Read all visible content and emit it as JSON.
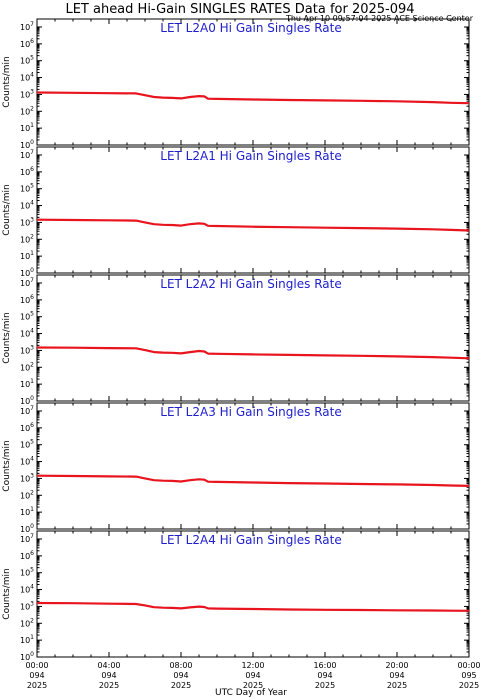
{
  "figure": {
    "title": "LET ahead Hi-Gain SINGLES RATES Data for 2025-094",
    "timestamp": "Thu Apr 10 09:57:04 2025 ACE Science Center",
    "xlabel": "UTC Day of Year",
    "ylabel": "Counts/min"
  },
  "colors": {
    "series": "#e8141e",
    "panel_title": "#2020cc",
    "axes": "#000000"
  },
  "chart_data": [
    {
      "type": "line",
      "title": "LET L2A0 Hi Gain Singles Rate",
      "ylabel": "Counts/min",
      "yscale": "log",
      "ylim": [
        1,
        10000000
      ],
      "xlim": [
        0,
        24
      ],
      "ytick_labels": [
        "10^0",
        "10^1",
        "10^2",
        "10^3",
        "10^4",
        "10^5",
        "10^6",
        "10^7"
      ],
      "series": [
        {
          "values": [
            [
              0,
              1300
            ],
            [
              2,
              1250
            ],
            [
              4,
              1180
            ],
            [
              5.5,
              1150
            ],
            [
              6,
              900
            ],
            [
              6.5,
              700
            ],
            [
              7,
              650
            ],
            [
              7.5,
              620
            ],
            [
              8,
              580
            ],
            [
              8.5,
              700
            ],
            [
              9,
              800
            ],
            [
              9.3,
              760
            ],
            [
              9.5,
              560
            ],
            [
              10,
              540
            ],
            [
              12,
              500
            ],
            [
              14,
              470
            ],
            [
              16,
              440
            ],
            [
              18,
              420
            ],
            [
              20,
              390
            ],
            [
              22,
              350
            ],
            [
              23,
              320
            ],
            [
              24,
              300
            ]
          ]
        }
      ]
    },
    {
      "type": "line",
      "title": "LET L2A1 Hi Gain Singles Rate",
      "ylabel": "Counts/min",
      "yscale": "log",
      "ylim": [
        1,
        10000000
      ],
      "xlim": [
        0,
        24
      ],
      "ytick_labels": [
        "10^0",
        "10^1",
        "10^2",
        "10^3",
        "10^4",
        "10^5",
        "10^6",
        "10^7"
      ],
      "series": [
        {
          "values": [
            [
              0,
              1450
            ],
            [
              2,
              1400
            ],
            [
              4,
              1330
            ],
            [
              5.5,
              1280
            ],
            [
              6,
              1000
            ],
            [
              6.5,
              780
            ],
            [
              7,
              720
            ],
            [
              7.5,
              700
            ],
            [
              8,
              650
            ],
            [
              8.5,
              780
            ],
            [
              9,
              880
            ],
            [
              9.3,
              830
            ],
            [
              9.5,
              630
            ],
            [
              10,
              610
            ],
            [
              12,
              560
            ],
            [
              14,
              520
            ],
            [
              16,
              490
            ],
            [
              18,
              460
            ],
            [
              20,
              430
            ],
            [
              22,
              390
            ],
            [
              23,
              360
            ],
            [
              24,
              330
            ]
          ]
        }
      ]
    },
    {
      "type": "line",
      "title": "LET L2A2 Hi Gain Singles Rate",
      "ylabel": "Counts/min",
      "yscale": "log",
      "ylim": [
        1,
        10000000
      ],
      "xlim": [
        0,
        24
      ],
      "ytick_labels": [
        "10^0",
        "10^1",
        "10^2",
        "10^3",
        "10^4",
        "10^5",
        "10^6",
        "10^7"
      ],
      "series": [
        {
          "values": [
            [
              0,
              1500
            ],
            [
              2,
              1450
            ],
            [
              4,
              1380
            ],
            [
              5.5,
              1330
            ],
            [
              6,
              1050
            ],
            [
              6.5,
              800
            ],
            [
              7,
              740
            ],
            [
              7.5,
              720
            ],
            [
              8,
              670
            ],
            [
              8.5,
              800
            ],
            [
              9,
              920
            ],
            [
              9.3,
              860
            ],
            [
              9.5,
              650
            ],
            [
              10,
              630
            ],
            [
              12,
              580
            ],
            [
              14,
              540
            ],
            [
              16,
              510
            ],
            [
              18,
              480
            ],
            [
              20,
              440
            ],
            [
              22,
              400
            ],
            [
              23,
              370
            ],
            [
              24,
              340
            ]
          ]
        }
      ]
    },
    {
      "type": "line",
      "title": "LET L2A3 Hi Gain Singles Rate",
      "ylabel": "Counts/min",
      "yscale": "log",
      "ylim": [
        1,
        10000000
      ],
      "xlim": [
        0,
        24
      ],
      "ytick_labels": [
        "10^0",
        "10^1",
        "10^2",
        "10^3",
        "10^4",
        "10^5",
        "10^6",
        "10^7"
      ],
      "series": [
        {
          "values": [
            [
              0,
              1450
            ],
            [
              2,
              1400
            ],
            [
              4,
              1320
            ],
            [
              5.5,
              1280
            ],
            [
              6,
              1000
            ],
            [
              6.5,
              790
            ],
            [
              7,
              730
            ],
            [
              7.5,
              710
            ],
            [
              8,
              660
            ],
            [
              8.5,
              790
            ],
            [
              9,
              890
            ],
            [
              9.3,
              840
            ],
            [
              9.5,
              640
            ],
            [
              10,
              620
            ],
            [
              12,
              570
            ],
            [
              14,
              530
            ],
            [
              16,
              500
            ],
            [
              18,
              470
            ],
            [
              20,
              440
            ],
            [
              22,
              410
            ],
            [
              23,
              380
            ],
            [
              24,
              360
            ]
          ]
        }
      ]
    },
    {
      "type": "line",
      "title": "LET L2A4 Hi Gain Singles Rate",
      "ylabel": "Counts/min",
      "yscale": "log",
      "ylim": [
        1,
        10000000
      ],
      "xlim": [
        0,
        24
      ],
      "ytick_labels": [
        "10^0",
        "10^1",
        "10^2",
        "10^3",
        "10^4",
        "10^5",
        "10^6",
        "10^7"
      ],
      "series": [
        {
          "values": [
            [
              0,
              1600
            ],
            [
              2,
              1550
            ],
            [
              4,
              1460
            ],
            [
              5.5,
              1400
            ],
            [
              6,
              1150
            ],
            [
              6.5,
              900
            ],
            [
              7,
              840
            ],
            [
              7.5,
              820
            ],
            [
              8,
              760
            ],
            [
              8.5,
              880
            ],
            [
              9,
              980
            ],
            [
              9.3,
              920
            ],
            [
              9.5,
              760
            ],
            [
              10,
              740
            ],
            [
              12,
              700
            ],
            [
              14,
              660
            ],
            [
              16,
              630
            ],
            [
              18,
              610
            ],
            [
              20,
              590
            ],
            [
              22,
              570
            ],
            [
              23,
              560
            ],
            [
              24,
              550
            ]
          ]
        }
      ]
    }
  ],
  "x_ticks": [
    {
      "time": "00:00",
      "day": "094",
      "year": "2025"
    },
    {
      "time": "04:00",
      "day": "094",
      "year": "2025"
    },
    {
      "time": "08:00",
      "day": "094",
      "year": "2025"
    },
    {
      "time": "12:00",
      "day": "094",
      "year": "2025"
    },
    {
      "time": "16:00",
      "day": "094",
      "year": "2025"
    },
    {
      "time": "20:00",
      "day": "094",
      "year": "2025"
    },
    {
      "time": "00:00",
      "day": "095",
      "year": "2025"
    }
  ]
}
